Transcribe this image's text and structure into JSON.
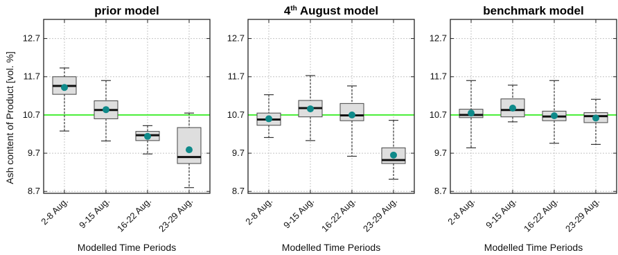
{
  "figure": {
    "ylabel": "Ash content of Product [vol. %]",
    "xlabel": "Modelled Time Periods",
    "reference_color": "#44ee33",
    "mean_marker_color": "#0f8a8a",
    "box_fill_color": "#dedede"
  },
  "chart_data": [
    {
      "type": "box",
      "title": "prior model",
      "title_parts": [
        {
          "text": "prior model",
          "sup": false
        }
      ],
      "categories": [
        "2-8 Aug.",
        "9-15 Aug.",
        "16-22 Aug.",
        "23-29 Aug."
      ],
      "yticks": [
        "12.7",
        "11.7",
        "10.7",
        "9.7",
        "8.7"
      ],
      "ylim": [
        8.65,
        13.2
      ],
      "grid": true,
      "reference_line": 10.7,
      "boxes": [
        {
          "whisker_low": 10.28,
          "q1": 11.24,
          "median": 11.46,
          "q3": 11.7,
          "whisker_high": 11.93,
          "mean": 11.42
        },
        {
          "whisker_low": 10.02,
          "q1": 10.6,
          "median": 10.83,
          "q3": 11.07,
          "whisker_high": 11.6,
          "mean": 10.84
        },
        {
          "whisker_low": 9.68,
          "q1": 10.03,
          "median": 10.17,
          "q3": 10.27,
          "whisker_high": 10.42,
          "mean": 10.14
        },
        {
          "whisker_low": 8.8,
          "q1": 9.43,
          "median": 9.6,
          "q3": 10.37,
          "whisker_high": 10.75,
          "mean": 9.79
        }
      ]
    },
    {
      "type": "box",
      "title": "4th August model",
      "title_parts": [
        {
          "text": "4",
          "sup": false
        },
        {
          "text": "th",
          "sup": true
        },
        {
          "text": " August model",
          "sup": false
        }
      ],
      "categories": [
        "2-8 Aug.",
        "9-15 Aug.",
        "16-22 Aug.",
        "23-29 Aug."
      ],
      "yticks": [
        "12.7",
        "11.7",
        "10.7",
        "9.7",
        "8.7"
      ],
      "ylim": [
        8.65,
        13.2
      ],
      "grid": true,
      "reference_line": 10.7,
      "boxes": [
        {
          "whisker_low": 10.11,
          "q1": 10.43,
          "median": 10.58,
          "q3": 10.75,
          "whisker_high": 11.23,
          "mean": 10.6
        },
        {
          "whisker_low": 10.03,
          "q1": 10.65,
          "median": 10.88,
          "q3": 11.08,
          "whisker_high": 11.73,
          "mean": 10.86
        },
        {
          "whisker_low": 9.62,
          "q1": 10.55,
          "median": 10.69,
          "q3": 11.0,
          "whisker_high": 11.46,
          "mean": 10.7
        },
        {
          "whisker_low": 9.02,
          "q1": 9.43,
          "median": 9.52,
          "q3": 9.84,
          "whisker_high": 10.56,
          "mean": 9.65
        }
      ]
    },
    {
      "type": "box",
      "title": "benchmark model",
      "title_parts": [
        {
          "text": "benchmark model",
          "sup": false
        }
      ],
      "categories": [
        "2-8 Aug.",
        "9-15 Aug.",
        "16-22 Aug.",
        "23-29 Aug."
      ],
      "yticks": [
        "12.7",
        "11.7",
        "10.7",
        "9.7",
        "8.7"
      ],
      "ylim": [
        8.65,
        13.2
      ],
      "grid": true,
      "reference_line": 10.7,
      "boxes": [
        {
          "whisker_low": 9.84,
          "q1": 10.63,
          "median": 10.7,
          "q3": 10.85,
          "whisker_high": 11.6,
          "mean": 10.75
        },
        {
          "whisker_low": 10.52,
          "q1": 10.65,
          "median": 10.83,
          "q3": 11.12,
          "whisker_high": 11.48,
          "mean": 10.88
        },
        {
          "whisker_low": 9.96,
          "q1": 10.55,
          "median": 10.66,
          "q3": 10.8,
          "whisker_high": 11.6,
          "mean": 10.68
        },
        {
          "whisker_low": 9.93,
          "q1": 10.5,
          "median": 10.67,
          "q3": 10.76,
          "whisker_high": 11.11,
          "mean": 10.62
        }
      ]
    }
  ]
}
